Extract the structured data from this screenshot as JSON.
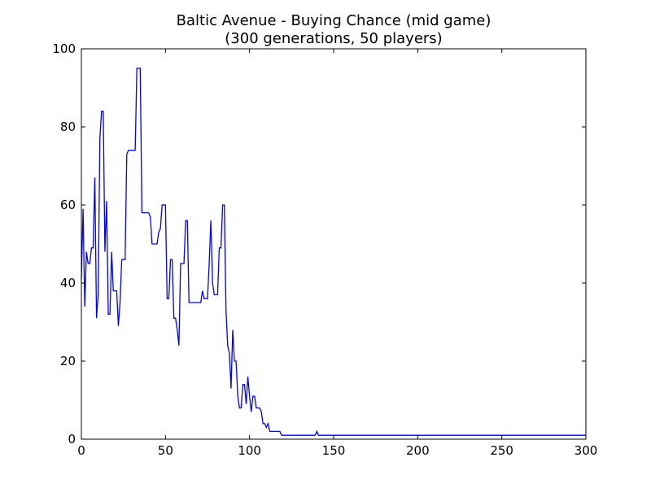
{
  "chart_data": {
    "type": "line",
    "title": "Baltic Avenue - Buying Chance (mid game)",
    "subtitle": "(300 generations, 50 players)",
    "xlabel": "",
    "ylabel": "",
    "xlim": [
      0,
      300
    ],
    "ylim": [
      0,
      100
    ],
    "xticks": [
      0,
      50,
      100,
      150,
      200,
      250,
      300
    ],
    "yticks": [
      0,
      20,
      40,
      60,
      80,
      100
    ],
    "grid": false,
    "line_color": "#0000ff",
    "series": [
      {
        "points": [
          [
            0,
            41
          ],
          [
            1,
            59
          ],
          [
            2,
            34
          ],
          [
            3,
            48
          ],
          [
            4,
            45
          ],
          [
            5,
            45
          ],
          [
            6,
            49
          ],
          [
            7,
            49
          ],
          [
            8,
            67
          ],
          [
            9,
            31
          ],
          [
            10,
            37
          ],
          [
            11,
            77
          ],
          [
            12,
            84
          ],
          [
            13,
            84
          ],
          [
            14,
            48
          ],
          [
            15,
            61
          ],
          [
            16,
            32
          ],
          [
            17,
            32
          ],
          [
            18,
            48
          ],
          [
            19,
            38
          ],
          [
            20,
            38
          ],
          [
            21,
            38
          ],
          [
            22,
            29
          ],
          [
            23,
            35
          ],
          [
            24,
            46
          ],
          [
            25,
            46
          ],
          [
            26,
            46
          ],
          [
            27,
            73
          ],
          [
            28,
            74
          ],
          [
            29,
            74
          ],
          [
            30,
            74
          ],
          [
            31,
            74
          ],
          [
            32,
            74
          ],
          [
            33,
            95
          ],
          [
            34,
            95
          ],
          [
            35,
            95
          ],
          [
            36,
            58
          ],
          [
            37,
            58
          ],
          [
            38,
            58
          ],
          [
            39,
            58
          ],
          [
            40,
            58
          ],
          [
            41,
            57
          ],
          [
            42,
            50
          ],
          [
            43,
            50
          ],
          [
            44,
            50
          ],
          [
            45,
            50
          ],
          [
            46,
            53
          ],
          [
            47,
            54
          ],
          [
            48,
            60
          ],
          [
            49,
            60
          ],
          [
            50,
            60
          ],
          [
            51,
            36
          ],
          [
            52,
            36
          ],
          [
            53,
            46
          ],
          [
            54,
            46
          ],
          [
            55,
            31
          ],
          [
            56,
            31
          ],
          [
            57,
            28
          ],
          [
            58,
            24
          ],
          [
            59,
            45
          ],
          [
            60,
            45
          ],
          [
            61,
            45
          ],
          [
            62,
            56
          ],
          [
            63,
            56
          ],
          [
            64,
            35
          ],
          [
            65,
            35
          ],
          [
            66,
            35
          ],
          [
            70,
            35
          ],
          [
            71,
            35
          ],
          [
            72,
            38
          ],
          [
            73,
            36
          ],
          [
            74,
            36
          ],
          [
            75,
            36
          ],
          [
            76,
            45
          ],
          [
            77,
            56
          ],
          [
            78,
            40
          ],
          [
            79,
            37
          ],
          [
            80,
            37
          ],
          [
            81,
            37
          ],
          [
            82,
            49
          ],
          [
            83,
            49
          ],
          [
            84,
            60
          ],
          [
            85,
            60
          ],
          [
            86,
            33
          ],
          [
            87,
            24
          ],
          [
            88,
            22
          ],
          [
            89,
            13
          ],
          [
            90,
            28
          ],
          [
            91,
            20
          ],
          [
            92,
            20
          ],
          [
            93,
            11
          ],
          [
            94,
            8
          ],
          [
            95,
            8
          ],
          [
            96,
            14
          ],
          [
            97,
            14
          ],
          [
            98,
            9
          ],
          [
            99,
            16
          ],
          [
            100,
            11
          ],
          [
            101,
            7
          ],
          [
            102,
            11
          ],
          [
            103,
            11
          ],
          [
            104,
            8
          ],
          [
            105,
            8
          ],
          [
            106,
            8
          ],
          [
            107,
            7
          ],
          [
            108,
            4
          ],
          [
            109,
            4
          ],
          [
            110,
            3
          ],
          [
            111,
            4
          ],
          [
            112,
            2
          ],
          [
            113,
            2
          ],
          [
            114,
            2
          ],
          [
            115,
            2
          ],
          [
            116,
            2
          ],
          [
            117,
            2
          ],
          [
            118,
            2
          ],
          [
            119,
            1
          ],
          [
            120,
            1
          ],
          [
            139,
            1
          ],
          [
            140,
            2
          ],
          [
            141,
            1
          ],
          [
            142,
            1
          ],
          [
            300,
            1
          ]
        ]
      }
    ]
  }
}
